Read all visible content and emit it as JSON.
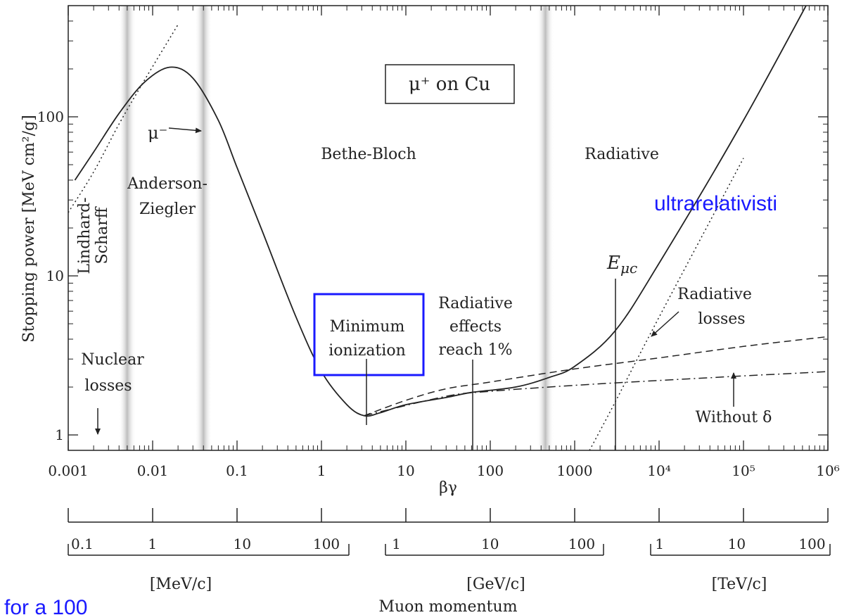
{
  "chart_data": {
    "type": "line",
    "title": "μ⁺ on Cu",
    "xlabel": "βγ",
    "ylabel": "Stopping power [MeV cm²/g]",
    "xscale": "log",
    "yscale": "log",
    "xlim": [
      0.001,
      1000000
    ],
    "ylim": [
      0.8,
      500
    ],
    "x_ticks": [
      "0.001",
      "0.01",
      "0.1",
      "1",
      "10",
      "100",
      "1000",
      "10⁴",
      "10⁵",
      "10⁶"
    ],
    "y_ticks": [
      "1",
      "10",
      "100"
    ],
    "series": [
      {
        "style": "solid",
        "x": [
          0.0012,
          0.002,
          0.004,
          0.008,
          0.016,
          0.03,
          0.06,
          0.1,
          0.2,
          0.5,
          1,
          2,
          3.2,
          5,
          10,
          30,
          60,
          200,
          500,
          1000,
          3000,
          10000,
          100000,
          1000000
        ],
        "y": [
          40,
          60,
          105,
          165,
          205,
          175,
          95,
          48,
          19,
          5.5,
          2.5,
          1.55,
          1.32,
          1.38,
          1.55,
          1.72,
          1.85,
          2.0,
          2.3,
          2.7,
          4.5,
          12,
          95,
          900
        ]
      },
      {
        "style": "dashed",
        "x": [
          3.2,
          10,
          30,
          100,
          1000,
          10000,
          100000,
          1000000
        ],
        "y": [
          1.32,
          1.65,
          1.95,
          2.15,
          2.6,
          3.05,
          3.6,
          4.15
        ]
      },
      {
        "style": "dash-dot",
        "x": [
          3.2,
          30,
          100,
          1000,
          10000,
          100000,
          1000000
        ],
        "y": [
          1.32,
          1.75,
          1.88,
          2.05,
          2.2,
          2.35,
          2.5
        ]
      },
      {
        "style": "dotted",
        "x": [
          0.001,
          0.002,
          0.004,
          0.008,
          0.02
        ],
        "y": [
          25,
          45,
          90,
          170,
          380
        ]
      },
      {
        "style": "dotted",
        "x": [
          1500,
          3000,
          10000,
          100000
        ],
        "y": [
          0.8,
          1.6,
          5.5,
          55
        ]
      }
    ],
    "annotations": {
      "mu_minus": "μ⁻",
      "bethe": "Bethe-Bloch",
      "radiative": "Radiative",
      "anderson": [
        "Anderson-",
        "Ziegler"
      ],
      "lindhard": [
        "Lindhard-",
        "Scharff"
      ],
      "nuclear": [
        "Nuclear",
        "losses"
      ],
      "min_ion": [
        "Minimum",
        "ionization"
      ],
      "rad_effects": [
        "Radiative",
        "effects",
        "reach 1%"
      ],
      "emuc": "E",
      "emuc_sub": "μc",
      "rad_losses": [
        "Radiative",
        "losses"
      ],
      "without_delta": "Without δ"
    },
    "momentum_axis": {
      "label": "Muon momentum",
      "groups": [
        {
          "unit": "[MeV/c]",
          "ticks": [
            "0.1",
            "1",
            "10",
            "100"
          ]
        },
        {
          "unit": "[GeV/c]",
          "ticks": [
            "1",
            "10",
            "100"
          ]
        },
        {
          "unit": "[TeV/c]",
          "ticks": [
            "1",
            "10",
            "100"
          ]
        }
      ]
    }
  },
  "overlay": {
    "ultrarel": "ultrarelativisti",
    "for_text": "for a 100"
  },
  "colors": {
    "ink": "#222222",
    "highlight": "#1a1aff",
    "band": "#bdbdbd"
  }
}
